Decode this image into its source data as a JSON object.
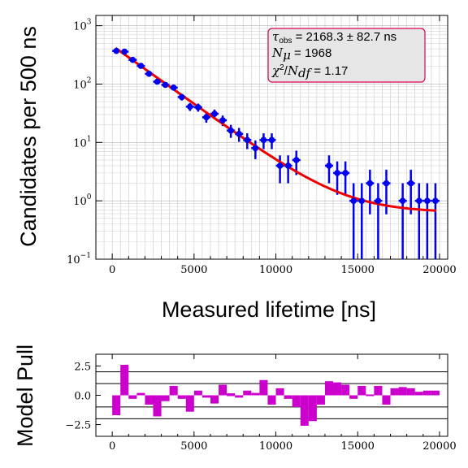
{
  "chart_data": [
    {
      "type": "scatter",
      "name": "lifetime-fit",
      "ylabel": "Candidates per 500 ns",
      "xlabel": "Measured lifetime [ns]",
      "xlim": [
        -1000,
        20500
      ],
      "ylim": [
        0.1,
        1500
      ],
      "yscale": "log",
      "grid": true,
      "x_ticks": [
        "0",
        "5000",
        "10000",
        "15000",
        "20000"
      ],
      "y_ticks": [
        {
          "base": "10",
          "exp": "3"
        },
        {
          "base": "10",
          "exp": "2"
        },
        {
          "base": "10",
          "exp": "1"
        },
        {
          "base": "10",
          "exp": "0"
        },
        {
          "base": "10",
          "exp": "−1"
        }
      ],
      "legend_position": "top-right",
      "stats": {
        "tau_sym": "τ",
        "tau_sub": "obs",
        "tau_value": " = 2168.3 ± 82.7 ns",
        "n_sym": "N",
        "n_sub": "μ",
        "n_value": " = 1968",
        "chi_sym": "χ",
        "chi_sup": "2",
        "chi_div": "/",
        "ndf_sym": "N",
        "ndf_sub": "df",
        "chi_value": " = 1.17"
      },
      "points": {
        "x": [
          250,
          750,
          1250,
          1750,
          2250,
          2750,
          3250,
          3750,
          4250,
          4750,
          5250,
          5750,
          6250,
          6750,
          7250,
          7750,
          8250,
          8750,
          9250,
          9750,
          10250,
          10750,
          11250,
          13250,
          13750,
          14250,
          14750,
          15250,
          15750,
          16250,
          16750,
          17750,
          18250,
          18750,
          19250,
          19750
        ],
        "y": [
          370,
          360,
          260,
          205,
          150,
          110,
          97,
          87,
          60,
          41,
          40,
          27,
          31,
          24,
          16,
          14,
          11,
          8,
          11,
          11,
          4,
          4,
          5,
          4,
          3,
          3,
          1,
          1,
          2,
          1,
          2,
          1,
          2,
          1,
          1,
          1
        ],
        "color": "#0000ee"
      },
      "fit": {
        "color": "#ee0000",
        "tau": 2168.3,
        "amplitude": 405,
        "constant": 0.63,
        "bin_width": 500
      }
    },
    {
      "type": "bar",
      "name": "model-pull",
      "ylabel": "Model Pull",
      "xlabel": "",
      "xlim": [
        -1000,
        20500
      ],
      "ylim": [
        -3.5,
        3.5
      ],
      "x_ticks": [
        "0",
        "5000",
        "10000",
        "15000",
        "20000"
      ],
      "y_ticks": [
        "2.5",
        "0.0",
        "−2.5"
      ],
      "reference_lines": [
        -2,
        -1,
        1,
        2
      ],
      "color": "#cc00cc",
      "bin_width": 500,
      "x": [
        250,
        750,
        1250,
        1750,
        2250,
        2750,
        3250,
        3750,
        4250,
        4750,
        5250,
        5750,
        6250,
        6750,
        7250,
        7750,
        8250,
        8750,
        9250,
        9750,
        10250,
        10750,
        11250,
        11750,
        12250,
        12750,
        13250,
        13750,
        14250,
        14750,
        15250,
        15750,
        16250,
        16750,
        17250,
        17750,
        18250,
        18750,
        19250,
        19750
      ],
      "values": [
        -1.7,
        2.6,
        -0.3,
        0.2,
        -0.8,
        -1.8,
        -0.5,
        0.8,
        -0.3,
        -1.4,
        0.4,
        -0.2,
        -0.7,
        0.9,
        0.1,
        -0.2,
        0.4,
        0.2,
        1.3,
        -0.8,
        0.6,
        -0.3,
        -1.0,
        -2.6,
        -2.2,
        -0.8,
        1.2,
        1.1,
        0.9,
        -0.3,
        0.8,
        0.0,
        0.8,
        -0.8,
        0.6,
        0.7,
        0.6,
        0.3,
        0.4,
        0.4
      ]
    }
  ]
}
